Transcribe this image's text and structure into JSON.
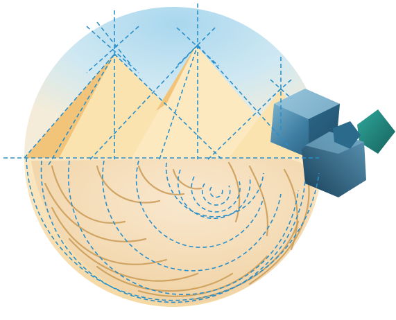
{
  "illustration": {
    "subject": "pyramids-nautilus-crystal-cubes-golden-ratio",
    "colors": {
      "background": "#ffffff",
      "sky_light": "#dbeef6",
      "sky_blue": "#a9d7ee",
      "sand_light": "#fbe7c3",
      "sand_mid": "#f5d9a4",
      "pyramid_light": "#fbe3b0",
      "pyramid_shade": "#f2c47a",
      "shell_fill": "#f6dfbf",
      "shell_rib": "#c99a55",
      "guide_line": "#2a8fc9",
      "cube_dark": "#1e4e6a",
      "cube_mid": "#3f7fa3",
      "cube_light": "#8cc0d8",
      "cube_green": "#1f8a80"
    }
  }
}
